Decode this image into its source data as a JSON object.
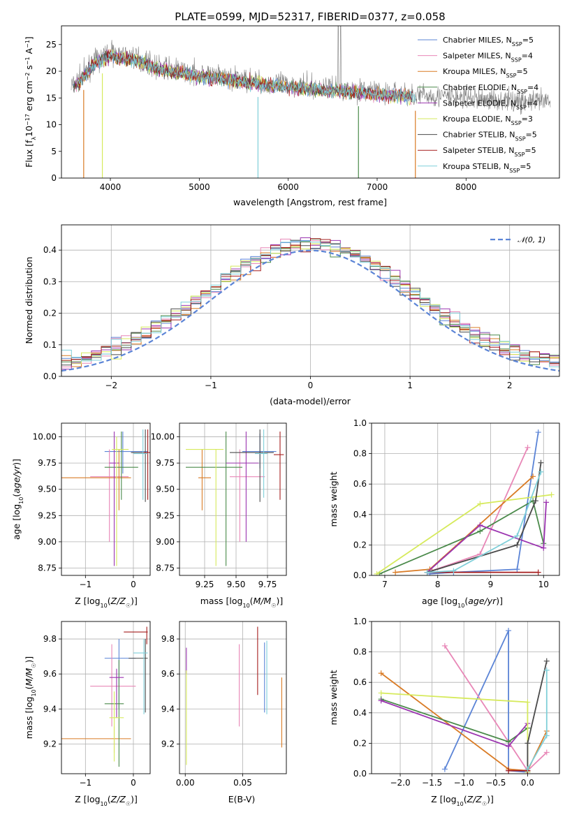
{
  "chart_data": [
    {
      "id": "spectrum",
      "type": "line",
      "title": "PLATE=0599, MJD=52317, FIBERID=0377, z=0.058",
      "xlabel": "wavelength [Angstrom, rest frame]",
      "ylabel": "Flux [f_λ 10^-17 erg cm^-2 s^-1 A^-1]",
      "xlim": [
        3450,
        9050
      ],
      "ylim": [
        0,
        28.5
      ],
      "xticks": [
        4000,
        5000,
        6000,
        7000,
        8000
      ],
      "yticks": [
        0,
        5,
        10,
        15,
        20,
        25
      ],
      "grid": false,
      "legend_position": "top-right",
      "continuum_knots": {
        "x": [
          3580,
          3650,
          3700,
          3800,
          3900,
          4000,
          4100,
          4300,
          4500,
          5000,
          5500,
          6000,
          6500,
          7000,
          7500,
          8000,
          8500,
          9000
        ],
        "y": [
          17.5,
          18.5,
          19.5,
          21.5,
          22.5,
          23.5,
          23.0,
          22.5,
          21.0,
          19.5,
          18.5,
          17.5,
          16.8,
          16.2,
          15.5,
          15.0,
          14.5,
          14.2
        ]
      },
      "series": [
        {
          "name": "Chabrier MILES, N_SSP=5",
          "color": "#5b84d6"
        },
        {
          "name": "Salpeter MILES, N_SSP=4",
          "color": "#e887b7"
        },
        {
          "name": "Kroupa MILES, N_SSP=5",
          "color": "#d97b25"
        },
        {
          "name": "Chabrier ELODIE, N_SSP=4",
          "color": "#4a8a4a"
        },
        {
          "name": "Salpeter ELODIE, N_SSP=4",
          "color": "#9b34b0"
        },
        {
          "name": "Kroupa ELODIE, N_SSP=3",
          "color": "#d6ea5c"
        },
        {
          "name": "Chabrier STELIB, N_SSP=5",
          "color": "#4a4a4a"
        },
        {
          "name": "Salpeter STELIB, N_SSP=5",
          "color": "#a51d1d"
        },
        {
          "name": "Kroupa STELIB, N_SSP=5",
          "color": "#7fcfd9"
        }
      ]
    },
    {
      "id": "residuals",
      "type": "histogram",
      "xlabel": "(data-model)/error",
      "ylabel": "Normed distribution",
      "xlim": [
        -2.5,
        2.5
      ],
      "ylim": [
        0,
        0.48
      ],
      "xticks": [
        -2,
        -1,
        0,
        1,
        2
      ],
      "yticks": [
        0.0,
        0.1,
        0.2,
        0.3,
        0.4
      ],
      "grid": true,
      "legend_position": "top-right",
      "reference_curve": {
        "name": "𝒩(0, 1)",
        "color": "#5b84d6",
        "style": "dashed"
      }
    },
    {
      "id": "age_vs_Z",
      "type": "errorbar",
      "xlabel": "Z [log10(Z/Z☉)]",
      "ylabel": "age [log10(age/yr)]",
      "xlim": [
        -1.5,
        0.35
      ],
      "ylim": [
        8.68,
        10.13
      ],
      "xticks": [
        -1,
        0
      ],
      "yticks": [
        8.75,
        9.0,
        9.25,
        9.5,
        9.75,
        10.0
      ],
      "grid": true,
      "points": [
        {
          "x": -0.22,
          "xlo": -0.6,
          "xhi": 0.3,
          "y": 9.86,
          "ylo": 9.65,
          "yhi": 10.05,
          "color": "#5b84d6"
        },
        {
          "x": -0.5,
          "xlo": -0.9,
          "xhi": -0.1,
          "y": 9.62,
          "ylo": 9.0,
          "yhi": 9.88,
          "color": "#e887b7"
        },
        {
          "x": -0.3,
          "xlo": -1.5,
          "xhi": -0.05,
          "y": 9.61,
          "ylo": 9.3,
          "yhi": 9.88,
          "color": "#d97b25"
        },
        {
          "x": -0.25,
          "xlo": -0.6,
          "xhi": 0.1,
          "y": 9.71,
          "ylo": 9.4,
          "yhi": 10.05,
          "color": "#4a8a4a"
        },
        {
          "x": -0.4,
          "xlo": -0.5,
          "xhi": -0.3,
          "y": 9.75,
          "ylo": 8.77,
          "yhi": 10.05,
          "color": "#9b34b0"
        },
        {
          "x": -0.35,
          "xlo": -0.45,
          "xhi": -0.1,
          "y": 9.88,
          "ylo": 8.77,
          "yhi": 10.0,
          "color": "#d6ea5c"
        },
        {
          "x": 0.25,
          "xlo": -0.05,
          "xhi": 0.3,
          "y": 9.85,
          "ylo": 9.38,
          "yhi": 10.07,
          "color": "#4a4a4a"
        },
        {
          "x": 0.3,
          "xlo": 0.2,
          "xhi": 0.35,
          "y": 9.85,
          "ylo": 9.4,
          "yhi": 10.07,
          "color": "#a51d1d"
        },
        {
          "x": 0.2,
          "xlo": 0.0,
          "xhi": 0.3,
          "y": 9.84,
          "ylo": 9.4,
          "yhi": 10.07,
          "color": "#7fcfd9"
        }
      ]
    },
    {
      "id": "age_vs_mass",
      "type": "errorbar",
      "xlabel": "mass [log10(M/M☉)]",
      "ylabel": "",
      "xlim": [
        9.05,
        9.9
      ],
      "ylim": [
        8.68,
        10.13
      ],
      "xticks": [
        9.25,
        9.5,
        9.75
      ],
      "yticks": [
        8.75,
        9.0,
        9.25,
        9.5,
        9.75,
        10.0
      ],
      "grid": true,
      "points": [
        {
          "x": 9.69,
          "xlo": 9.55,
          "xhi": 9.82,
          "y": 9.86,
          "ylo": 9.7,
          "yhi": 10.03,
          "color": "#5b84d6"
        },
        {
          "x": 9.53,
          "xlo": 9.45,
          "xhi": 9.73,
          "y": 9.62,
          "ylo": 9.0,
          "yhi": 9.88,
          "color": "#e887b7"
        },
        {
          "x": 9.23,
          "xlo": 9.2,
          "xhi": 9.3,
          "y": 9.61,
          "ylo": 9.3,
          "yhi": 9.88,
          "color": "#d97b25"
        },
        {
          "x": 9.42,
          "xlo": 9.1,
          "xhi": 9.55,
          "y": 9.71,
          "ylo": 8.77,
          "yhi": 10.05,
          "color": "#4a8a4a"
        },
        {
          "x": 9.58,
          "xlo": 9.42,
          "xhi": 9.68,
          "y": 9.75,
          "ylo": 9.0,
          "yhi": 10.05,
          "color": "#9b34b0"
        },
        {
          "x": 9.34,
          "xlo": 9.1,
          "xhi": 9.4,
          "y": 9.88,
          "ylo": 8.77,
          "yhi": 9.88,
          "color": "#d6ea5c"
        },
        {
          "x": 9.69,
          "xlo": 9.45,
          "xhi": 9.8,
          "y": 9.85,
          "ylo": 9.38,
          "yhi": 10.07,
          "color": "#4a4a4a"
        },
        {
          "x": 9.85,
          "xlo": 9.8,
          "xhi": 9.88,
          "y": 9.83,
          "ylo": 9.4,
          "yhi": 10.05,
          "color": "#a51d1d"
        },
        {
          "x": 9.72,
          "xlo": 9.65,
          "xhi": 9.75,
          "y": 9.84,
          "ylo": 9.42,
          "yhi": 10.07,
          "color": "#7fcfd9"
        }
      ]
    },
    {
      "id": "weight_vs_age",
      "type": "line",
      "xlabel": "age [log10(age/yr)]",
      "ylabel": "mass weight",
      "xlim": [
        6.75,
        10.3
      ],
      "ylim": [
        0,
        1
      ],
      "xticks": [
        7,
        8,
        9,
        10
      ],
      "yticks": [
        0.0,
        0.2,
        0.4,
        0.6,
        0.8,
        1.0
      ],
      "grid": true,
      "series": [
        {
          "color": "#5b84d6",
          "x": [
            7.85,
            8.3,
            9.5,
            9.9
          ],
          "y": [
            0.01,
            0.02,
            0.04,
            0.94
          ]
        },
        {
          "color": "#e887b7",
          "x": [
            7.8,
            8.8,
            9.7
          ],
          "y": [
            0.02,
            0.14,
            0.84
          ]
        },
        {
          "color": "#d97b25",
          "x": [
            7.2,
            7.85,
            9.8
          ],
          "y": [
            0.02,
            0.04,
            0.65
          ]
        },
        {
          "color": "#4a8a4a",
          "x": [
            6.9,
            8.8,
            9.8,
            10.0
          ],
          "y": [
            0.01,
            0.29,
            0.49,
            0.21
          ]
        },
        {
          "color": "#9b34b0",
          "x": [
            7.8,
            8.8,
            10.0,
            10.05
          ],
          "y": [
            0.02,
            0.33,
            0.18,
            0.48
          ]
        },
        {
          "color": "#d6ea5c",
          "x": [
            6.85,
            8.8,
            10.15
          ],
          "y": [
            0.01,
            0.47,
            0.53
          ]
        },
        {
          "color": "#4a4a4a",
          "x": [
            7.8,
            9.5,
            9.85,
            9.95
          ],
          "y": [
            0.02,
            0.2,
            0.49,
            0.74
          ]
        },
        {
          "color": "#a51d1d",
          "x": [
            7.8,
            9.9
          ],
          "y": [
            0.02,
            0.02
          ]
        },
        {
          "color": "#7fcfd9",
          "x": [
            7.8,
            8.3,
            9.5,
            9.95
          ],
          "y": [
            0.02,
            0.03,
            0.26,
            0.68
          ]
        }
      ]
    },
    {
      "id": "mass_vs_Z",
      "type": "errorbar",
      "xlabel": "Z [log10(Z/Z☉)]",
      "ylabel": "mass [log10(M/M☉)]",
      "xlim": [
        -1.5,
        0.35
      ],
      "ylim": [
        9.03,
        9.9
      ],
      "xticks": [
        -1,
        0
      ],
      "yticks": [
        9.2,
        9.4,
        9.6,
        9.8
      ],
      "grid": true,
      "points": [
        {
          "x": -0.3,
          "xlo": -0.6,
          "xhi": 0.05,
          "y": 9.69,
          "ylo": 9.4,
          "yhi": 9.8,
          "color": "#5b84d6"
        },
        {
          "x": -0.45,
          "xlo": -0.9,
          "xhi": 0.05,
          "y": 9.53,
          "ylo": 9.3,
          "yhi": 9.77,
          "color": "#e887b7"
        },
        {
          "x": -0.4,
          "xlo": -1.5,
          "xhi": -0.05,
          "y": 9.23,
          "ylo": 9.15,
          "yhi": 9.3,
          "color": "#d97b25"
        },
        {
          "x": -0.3,
          "xlo": -0.6,
          "xhi": -0.2,
          "y": 9.43,
          "ylo": 9.07,
          "yhi": 9.68,
          "color": "#4a8a4a"
        },
        {
          "x": -0.35,
          "xlo": -0.5,
          "xhi": -0.2,
          "y": 9.58,
          "ylo": 9.35,
          "yhi": 9.63,
          "color": "#9b34b0"
        },
        {
          "x": -0.4,
          "xlo": -0.5,
          "xhi": -0.2,
          "y": 9.35,
          "ylo": 9.1,
          "yhi": 9.5,
          "color": "#d6ea5c"
        },
        {
          "x": 0.25,
          "xlo": -0.1,
          "xhi": 0.3,
          "y": 9.69,
          "ylo": 9.38,
          "yhi": 9.8,
          "color": "#4a4a4a"
        },
        {
          "x": 0.28,
          "xlo": -0.2,
          "xhi": 0.3,
          "y": 9.84,
          "ylo": 9.77,
          "yhi": 9.87,
          "color": "#a51d1d"
        },
        {
          "x": 0.22,
          "xlo": 0.0,
          "xhi": 0.3,
          "y": 9.72,
          "ylo": 9.37,
          "yhi": 9.8,
          "color": "#7fcfd9"
        }
      ]
    },
    {
      "id": "mass_vs_ebv",
      "type": "errorbar",
      "xlabel": "E(B-V)",
      "ylabel": "",
      "xlim": [
        -0.005,
        0.088
      ],
      "ylim": [
        9.03,
        9.9
      ],
      "xticks": [
        0.0,
        0.05
      ],
      "yticks": [
        9.2,
        9.4,
        9.6,
        9.8
      ],
      "grid": true,
      "points": [
        {
          "x": 0.001,
          "y": 9.69,
          "ylo": 9.6,
          "yhi": 9.75,
          "color": "#9b34b0"
        },
        {
          "x": 0.001,
          "y": 9.35,
          "ylo": 9.08,
          "yhi": 9.62,
          "color": "#d6ea5c"
        },
        {
          "x": 0.047,
          "y": 9.53,
          "ylo": 9.3,
          "yhi": 9.77,
          "color": "#e887b7"
        },
        {
          "x": 0.063,
          "y": 9.69,
          "ylo": 9.48,
          "yhi": 9.87,
          "color": "#a51d1d"
        },
        {
          "x": 0.069,
          "y": 9.59,
          "ylo": 9.38,
          "yhi": 9.78,
          "color": "#5b84d6"
        },
        {
          "x": 0.071,
          "y": 9.62,
          "ylo": 9.37,
          "yhi": 9.79,
          "color": "#7fcfd9"
        },
        {
          "x": 0.084,
          "y": 9.39,
          "ylo": 9.18,
          "yhi": 9.58,
          "color": "#d97b25"
        }
      ]
    },
    {
      "id": "weight_vs_Z",
      "type": "line",
      "xlabel": "Z [log10(Z/Z☉)]",
      "ylabel": "mass weight",
      "xlim": [
        -2.45,
        0.5
      ],
      "ylim": [
        0,
        1
      ],
      "xticks": [
        -2.0,
        -1.5,
        -1.0,
        -0.5,
        0.0
      ],
      "yticks": [
        0.0,
        0.2,
        0.4,
        0.6,
        0.8,
        1.0
      ],
      "grid": true,
      "series": [
        {
          "color": "#5b84d6",
          "x": [
            -1.3,
            -0.3,
            -0.3,
            0.0
          ],
          "y": [
            0.03,
            0.94,
            0.02,
            0.01
          ]
        },
        {
          "color": "#e887b7",
          "x": [
            -1.3,
            0.0,
            0.3
          ],
          "y": [
            0.84,
            0.02,
            0.14
          ]
        },
        {
          "color": "#d97b25",
          "x": [
            -2.3,
            -0.3,
            0.0,
            0.3
          ],
          "y": [
            0.66,
            0.03,
            0.02,
            0.28
          ]
        },
        {
          "color": "#4a8a4a",
          "x": [
            -2.3,
            -0.3,
            0.0
          ],
          "y": [
            0.49,
            0.21,
            0.3
          ]
        },
        {
          "color": "#9b34b0",
          "x": [
            -2.3,
            -0.3,
            0.0
          ],
          "y": [
            0.48,
            0.18,
            0.33
          ]
        },
        {
          "color": "#d6ea5c",
          "x": [
            -2.3,
            0.0,
            0.0
          ],
          "y": [
            0.53,
            0.47,
            0.01
          ]
        },
        {
          "color": "#4a4a4a",
          "x": [
            0.0,
            0.0,
            0.3
          ],
          "y": [
            0.02,
            0.2,
            0.74
          ]
        },
        {
          "color": "#a51d1d",
          "x": [
            -0.3,
            0.0
          ],
          "y": [
            0.02,
            0.02
          ]
        },
        {
          "color": "#7fcfd9",
          "x": [
            0.0,
            0.3,
            0.3
          ],
          "y": [
            0.03,
            0.25,
            0.68
          ]
        }
      ]
    }
  ]
}
